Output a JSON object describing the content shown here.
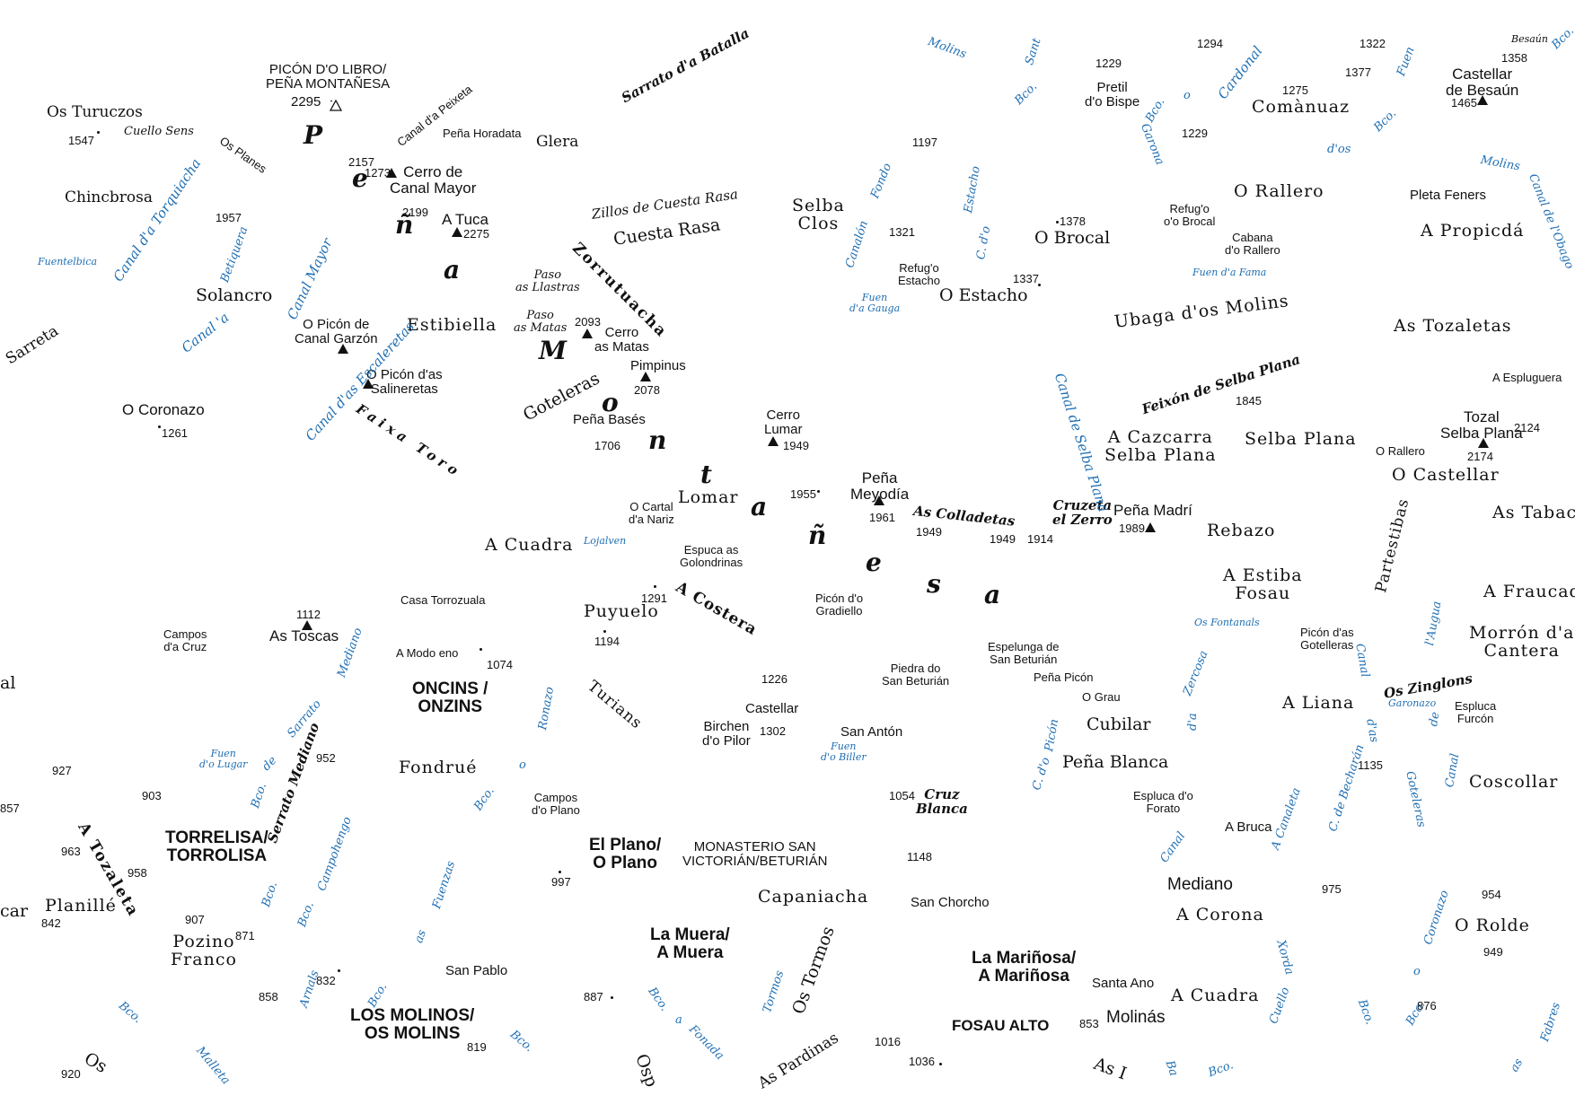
{
  "places": [
    "PICÓN D'O LIBRO/",
    "PEÑA MONTAÑESA",
    "Os Turuczos",
    "Cuello Sens",
    "Os Planes",
    "Chincbrosa",
    "Canal d'a Peixeta",
    "Peña Horadata",
    "Glera",
    "Sarrato d'a Batalla",
    "Cerro de",
    "Canal Mayor",
    "A Tuca",
    "Zillos de Cuesta Rasa",
    "Cuesta Rasa",
    "Zorrutuacha",
    "Paso",
    "as Llastras",
    "as Matas",
    "Cerro",
    "Pimpinus",
    "Solancro",
    "Sarreta",
    "O Picón de",
    "Canal Garzón",
    "Estibiella",
    "O Picón d'as",
    "Salineretas",
    "Faixa Toro",
    "Goteleras",
    "Peña Basés",
    "O Coronazo",
    "Cerro",
    "Lumar",
    "Lomar",
    "O Cartal",
    "d'a Nariz",
    "A Cuadra",
    "Espuca as",
    "Golondrinas",
    "A Costera",
    "Puyuelo",
    "Picón d'o",
    "Gradiello",
    "Peña",
    "Meyodía",
    "As Colladetas",
    "Cruzeta",
    "el Zerro",
    "Peña Madrí",
    "Selba",
    "Clos",
    "Refug'o",
    "Estacho",
    "O Estacho",
    "O Brocal",
    "Refug'o",
    "o'o Brocal",
    "Cabana",
    "d'o Rallero",
    "O Rallero",
    "Pretil",
    "d'o Bispe",
    "Comànuaz",
    "Castellar",
    "de Besaún",
    "Besaún",
    "Pleta Feners",
    "A Propicdá",
    "Ubaga d'os Molins",
    "As Tozaletas",
    "A Espluguera",
    "Feixón de Selba Plana",
    "A Cazcarra",
    "Selba Plana",
    "Selba Plana",
    "O Rallero",
    "Tozal",
    "Selba Plana",
    "O Castellar",
    "As Tabacc",
    "Rebazo",
    "A Estiba",
    "Fosau",
    "Partestibas",
    "A Fraucada",
    "Morrón d'a",
    "Cantera",
    "Picón d'as",
    "Gotelleras",
    "Os Zinglons",
    "A Liana",
    "Espluca",
    "Furcón",
    "Coscollar",
    "Campos",
    "d'a Cruz",
    "As Toscas",
    "Casa Torrozuala",
    "A Modo eno",
    "ONCINS /",
    "ONZINS",
    "Turians",
    "Castellar",
    "Birchen",
    "d'o Pilor",
    "Piedra do",
    "San Beturián",
    "Espelunga de",
    "San Beturián",
    "Peña Picón",
    "O Grau",
    "Cubilar",
    "Peña Blanca",
    "Espluca d'o",
    "Forato",
    "A Bruca",
    "Mediano",
    "A Corona",
    "O Rolde",
    "San Antón",
    "Fondrué",
    "Campos",
    "d'o Plano",
    "TORRELISA/",
    "TORROLISA",
    "A Tozaleta",
    "Planillé",
    "Pozino",
    "Franco",
    "El Plano/",
    "O Plano",
    "MONASTERIO SAN",
    "VICTORIÁN/BETURIÁN",
    "Capaniacha",
    "San Chorcho",
    "Cruz",
    "Blanca",
    "La Muera/",
    "A Muera",
    "La Mariñosa/",
    "A Mariñosa",
    "Santa Ano",
    "Molinás",
    "A Cuadra",
    "LOS MOLINOS/",
    "OS MOLINS",
    "San Pablo",
    "Os Tormos",
    "As Pardinas",
    "FOSAU ALTO",
    "Serrato Mediano",
    "Osp",
    "As I",
    "al",
    "car",
    "Os"
  ],
  "range_letters": [
    "P",
    "e",
    "ñ",
    "a",
    "M",
    "o",
    "n",
    "t",
    "a",
    "ñ",
    "e",
    "s",
    "a"
  ],
  "hydro": [
    "Molins",
    "Sant",
    "Bco.",
    "o",
    "Cardonal",
    "Bco.",
    "Garona",
    "Fuen",
    "Bco.",
    "d'os",
    "Molins",
    "Canal de l'Obago",
    "Bco.",
    "Fuentelbica",
    "Canal d'a Torquiacha",
    "Betiquera",
    "Canal Mayor",
    "Canal 'a",
    "Canal d'as Escaleretas",
    "Fondo",
    "Canalón",
    "Estacho",
    "C. d'o",
    "Fuen",
    "d'a Gauga",
    "Fuen d'a Fama",
    "Canal de Selba Plana",
    "Lojalven",
    "Os Fontanals",
    "Canal",
    "l'Augua",
    "Garonazo",
    "d'as",
    "de",
    "Mediano",
    "Ronazo",
    "o",
    "Bco.",
    "Zercosa",
    "d'a",
    "C. d'o",
    "Picón",
    "Fuen",
    "d'o Lugar",
    "Bco.",
    "de",
    "Sarrato",
    "Fuen",
    "d'o Biller",
    "Canal",
    "A Canaleta",
    "C. de Becharán",
    "Goteleras",
    "Canal",
    "Bco.",
    "Campohengo",
    "Bco.",
    "Fuenzas",
    "as",
    "Arnals",
    "Bco.",
    "Bco.",
    "Bco.",
    "Malleta",
    "Bco.",
    "a",
    "Fonada",
    "Tormos",
    "Xorda",
    "Coronazo",
    "o",
    "Cuello",
    "Bco.",
    "Bco.",
    "Ba",
    "Bco.",
    "as",
    "Fabres"
  ],
  "heights": [
    "2295",
    "1547",
    "1957",
    "2157",
    "1273",
    "2199",
    "2275",
    "2093",
    "2078",
    "1261",
    "1706",
    "1949",
    "1955",
    "1961",
    "1949",
    "1949",
    "1914",
    "1989",
    "1321",
    "1378",
    "1337",
    "1197",
    "1229",
    "1294",
    "1322",
    "1358",
    "1275",
    "1229",
    "1377",
    "1465",
    "1845",
    "2174",
    "2124",
    "1112",
    "1074",
    "1291",
    "1194",
    "1226",
    "1302",
    "952",
    "927",
    "857",
    "903",
    "963",
    "958",
    "907",
    "871",
    "842",
    "858",
    "832",
    "997",
    "1054",
    "1148",
    "975",
    "954",
    "949",
    "1135",
    "887",
    "853",
    "876",
    "819",
    "1016",
    "1036",
    "920"
  ]
}
